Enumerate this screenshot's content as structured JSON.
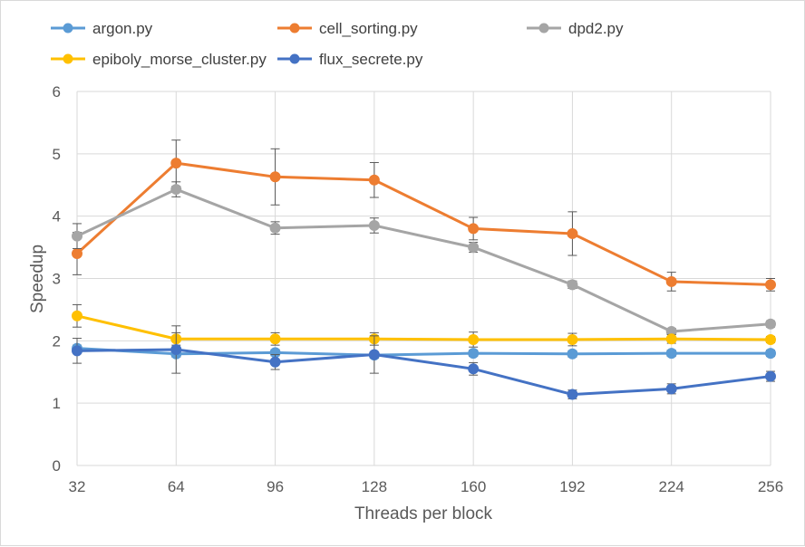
{
  "chart_data": {
    "type": "line",
    "xlabel": "Threads per block",
    "ylabel": "Speedup",
    "ylim": [
      0,
      6
    ],
    "yticks": [
      "0",
      "1",
      "2",
      "3",
      "4",
      "5",
      "6"
    ],
    "categories": [
      "32",
      "64",
      "96",
      "128",
      "160",
      "192",
      "224",
      "256"
    ],
    "grid": true,
    "legend_position": "top",
    "series": [
      {
        "name": "argon.py",
        "color": "#5B9BD5",
        "values": [
          1.88,
          1.79,
          1.81,
          1.77,
          1.8,
          1.79,
          1.8,
          1.8
        ],
        "errors": [
          0.05,
          0.05,
          0.05,
          0.05,
          0.05,
          0.05,
          0.05,
          0.05
        ]
      },
      {
        "name": "cell_sorting.py",
        "color": "#ED7D31",
        "values": [
          3.4,
          4.85,
          4.63,
          4.58,
          3.8,
          3.72,
          2.95,
          2.9
        ],
        "errors": [
          0.34,
          0.37,
          0.45,
          0.28,
          0.18,
          0.35,
          0.15,
          0.1
        ]
      },
      {
        "name": "dpd2.py",
        "color": "#A5A5A5",
        "values": [
          3.68,
          4.43,
          3.81,
          3.85,
          3.5,
          2.9,
          2.15,
          2.27
        ],
        "errors": [
          0.2,
          0.12,
          0.1,
          0.12,
          0.08,
          0.06,
          0.05,
          0.05
        ]
      },
      {
        "name": "epiboly_morse_cluster.py",
        "color": "#FFC000",
        "values": [
          2.4,
          2.03,
          2.03,
          2.03,
          2.02,
          2.02,
          2.03,
          2.02
        ],
        "errors": [
          0.18,
          0.1,
          0.1,
          0.1,
          0.12,
          0.1,
          0.07,
          0.05
        ]
      },
      {
        "name": "flux_secrete.py",
        "color": "#4472C4",
        "values": [
          1.84,
          1.86,
          1.66,
          1.78,
          1.55,
          1.14,
          1.23,
          1.43
        ],
        "errors": [
          0.2,
          0.38,
          0.12,
          0.3,
          0.1,
          0.07,
          0.08,
          0.08
        ]
      }
    ]
  }
}
